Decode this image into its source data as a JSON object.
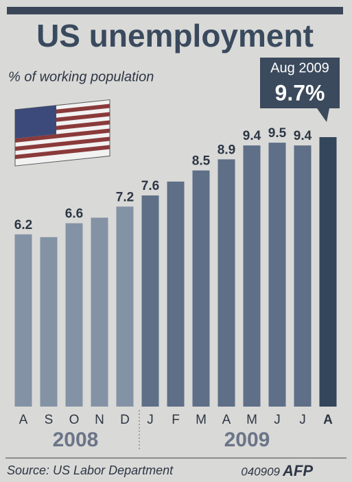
{
  "chart_data": {
    "type": "bar",
    "title": "US unemployment",
    "subtitle": "% of working population",
    "categories": [
      "A",
      "S",
      "O",
      "N",
      "D",
      "J",
      "F",
      "M",
      "A",
      "M",
      "J",
      "J",
      "A"
    ],
    "years": [
      "2008",
      "2009"
    ],
    "values": [
      6.2,
      6.1,
      6.6,
      6.8,
      7.2,
      7.6,
      8.1,
      8.5,
      8.9,
      9.4,
      9.5,
      9.4,
      9.7
    ],
    "value_labels": [
      "6.2",
      null,
      "6.6",
      null,
      "7.2",
      "7.6",
      null,
      "8.5",
      "8.9",
      "9.4",
      "9.5",
      "9.4",
      "9.7%"
    ],
    "colors": [
      "#8492a6",
      "#8492a6",
      "#8492a6",
      "#8492a6",
      "#8492a6",
      "#5e6f87",
      "#5e6f87",
      "#5e6f87",
      "#5e6f87",
      "#5e6f87",
      "#5e6f87",
      "#5e6f87",
      "#34465c"
    ],
    "callout": "Aug 2009",
    "source": "Source: US Labor Department",
    "code": "040909",
    "logo": "AFP"
  }
}
